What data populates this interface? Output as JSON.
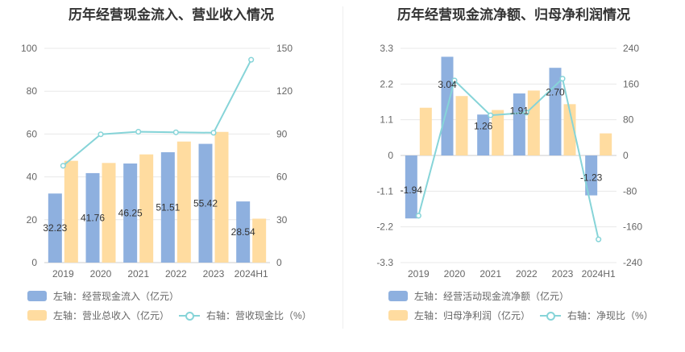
{
  "colors": {
    "blue": "#8eb0df",
    "orange": "#ffdca0",
    "teal": "#86d4d8"
  },
  "left": {
    "title": "历年经营现金流入、营业收入情况",
    "legend": {
      "series1": "左轴：经营现金流入（亿元）",
      "series2": "左轴：营业总收入（亿元）",
      "series3": "右轴：营收现金比（%）"
    },
    "chart_data": {
      "type": "bar",
      "categories": [
        "2019",
        "2020",
        "2021",
        "2022",
        "2023",
        "2024H1"
      ],
      "series": [
        {
          "name": "左轴：经营现金流入（亿元）",
          "axis": "left",
          "kind": "bar",
          "values": [
            32.23,
            41.76,
            46.25,
            51.51,
            55.42,
            28.54
          ],
          "labels": [
            "32.23",
            "41.76",
            "46.25",
            "51.51",
            "55.42",
            "28.54"
          ]
        },
        {
          "name": "左轴：营业总收入（亿元）",
          "axis": "left",
          "kind": "bar",
          "values": [
            47.5,
            46.5,
            50.5,
            56.5,
            61.0,
            20.5
          ]
        },
        {
          "name": "右轴：营收现金比（%）",
          "axis": "right",
          "kind": "line",
          "values": [
            67.8,
            89.8,
            91.6,
            91.2,
            90.9,
            142.0
          ]
        }
      ],
      "yleft": {
        "min": 0,
        "max": 100,
        "ticks": [
          "0",
          "20",
          "40",
          "60",
          "80",
          "100"
        ]
      },
      "yright": {
        "min": 0,
        "max": 150,
        "ticks": [
          "0",
          "30",
          "60",
          "90",
          "120",
          "150"
        ]
      },
      "grid": true,
      "legend_position": "bottom"
    }
  },
  "right": {
    "title": "历年经营现金流净额、归母净利润情况",
    "legend": {
      "series1": "左轴：经营活动现金流净额（亿元）",
      "series2": "左轴：归母净利润（亿元）",
      "series3": "右轴：净现比（%）"
    },
    "chart_data": {
      "type": "bar",
      "categories": [
        "2019",
        "2020",
        "2021",
        "2022",
        "2023",
        "2024H1"
      ],
      "series": [
        {
          "name": "左轴：经营活动现金流净额（亿元）",
          "axis": "left",
          "kind": "bar",
          "values": [
            -1.94,
            3.04,
            1.26,
            1.91,
            2.7,
            -1.23
          ],
          "labels": [
            "-1.94",
            "3.04",
            "1.26",
            "1.91",
            "2.70",
            "-1.23"
          ]
        },
        {
          "name": "左轴：归母净利润（亿元）",
          "axis": "left",
          "kind": "bar",
          "values": [
            1.47,
            1.83,
            1.4,
            2.0,
            1.58,
            0.68
          ]
        },
        {
          "name": "右轴：净现比（%）",
          "axis": "right",
          "kind": "line",
          "values": [
            -135,
            168,
            90,
            96,
            172,
            -188
          ]
        }
      ],
      "yleft": {
        "min": -3.3,
        "max": 3.3,
        "ticks": [
          "-3.3",
          "-2.2",
          "-1.1",
          "0",
          "1.1",
          "2.2",
          "3.3"
        ]
      },
      "yright": {
        "min": -240,
        "max": 240,
        "ticks": [
          "-240",
          "-160",
          "-80",
          "0",
          "80",
          "160",
          "240"
        ]
      },
      "grid": true,
      "legend_position": "bottom"
    }
  }
}
